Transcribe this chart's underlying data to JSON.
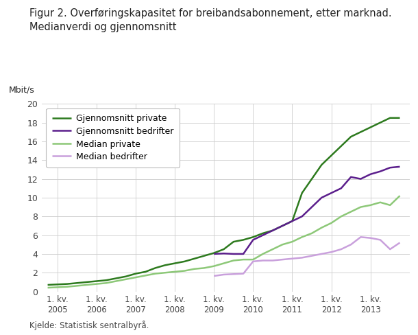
{
  "title_line1": "Figur 2. Overføringskapasitet for breibandsabonnement, etter marknad.",
  "title_line2": "Medianverdi og gjennomsnitt",
  "ylabel": "Mbit/s",
  "source": "Kjelde: Statistisk sentralbyrå.",
  "ylim": [
    0,
    20
  ],
  "xlim": [
    2004.6,
    2014.0
  ],
  "background_color": "#ffffff",
  "grid_color": "#cccccc",
  "series": [
    {
      "key": "gjennomsnitt_private",
      "label": "Gjennomsnitt private",
      "color": "#2d7a1e",
      "linewidth": 1.8,
      "x": [
        2004.75,
        2005.0,
        2005.25,
        2005.5,
        2005.75,
        2006.0,
        2006.25,
        2006.5,
        2006.75,
        2007.0,
        2007.25,
        2007.5,
        2007.75,
        2008.0,
        2008.25,
        2008.5,
        2008.75,
        2009.0,
        2009.25,
        2009.5,
        2009.75,
        2010.0,
        2010.25,
        2010.5,
        2010.75,
        2011.0,
        2011.25,
        2011.5,
        2011.75,
        2012.0,
        2012.25,
        2012.5,
        2012.75,
        2013.0,
        2013.25,
        2013.5,
        2013.75
      ],
      "y": [
        0.7,
        0.75,
        0.8,
        0.9,
        1.0,
        1.1,
        1.2,
        1.4,
        1.6,
        1.9,
        2.1,
        2.5,
        2.8,
        3.0,
        3.2,
        3.5,
        3.8,
        4.1,
        4.5,
        5.3,
        5.5,
        5.8,
        6.2,
        6.5,
        7.0,
        7.5,
        10.5,
        12.0,
        13.5,
        14.5,
        15.5,
        16.5,
        17.0,
        17.5,
        18.0,
        18.5,
        18.5
      ]
    },
    {
      "key": "gjennomsnitt_bedrifter",
      "label": "Gjennomsnitt bedrifter",
      "color": "#5b1e8c",
      "linewidth": 1.8,
      "x": [
        2009.0,
        2009.25,
        2009.5,
        2009.75,
        2010.0,
        2010.25,
        2010.5,
        2010.75,
        2011.0,
        2011.25,
        2011.5,
        2011.75,
        2012.0,
        2012.25,
        2012.5,
        2012.75,
        2013.0,
        2013.25,
        2013.5,
        2013.75
      ],
      "y": [
        4.0,
        4.05,
        4.0,
        4.0,
        5.5,
        6.0,
        6.5,
        7.0,
        7.5,
        8.0,
        9.0,
        10.0,
        10.5,
        11.0,
        12.2,
        12.0,
        12.5,
        12.8,
        13.2,
        13.3
      ]
    },
    {
      "key": "median_private",
      "label": "Median private",
      "color": "#8dc878",
      "linewidth": 1.8,
      "x": [
        2004.75,
        2005.0,
        2005.25,
        2005.5,
        2005.75,
        2006.0,
        2006.25,
        2006.5,
        2006.75,
        2007.0,
        2007.25,
        2007.5,
        2007.75,
        2008.0,
        2008.25,
        2008.5,
        2008.75,
        2009.0,
        2009.25,
        2009.5,
        2009.75,
        2010.0,
        2010.25,
        2010.5,
        2010.75,
        2011.0,
        2011.25,
        2011.5,
        2011.75,
        2012.0,
        2012.25,
        2012.5,
        2012.75,
        2013.0,
        2013.25,
        2013.5,
        2013.75
      ],
      "y": [
        0.4,
        0.45,
        0.5,
        0.6,
        0.7,
        0.8,
        0.9,
        1.1,
        1.3,
        1.5,
        1.7,
        1.9,
        2.0,
        2.1,
        2.2,
        2.4,
        2.5,
        2.7,
        3.0,
        3.3,
        3.4,
        3.4,
        4.0,
        4.5,
        5.0,
        5.3,
        5.8,
        6.2,
        6.8,
        7.3,
        8.0,
        8.5,
        9.0,
        9.2,
        9.5,
        9.2,
        10.2
      ]
    },
    {
      "key": "median_bedrifter",
      "label": "Median bedrifter",
      "color": "#c9a0dc",
      "linewidth": 1.8,
      "x": [
        2009.0,
        2009.25,
        2009.5,
        2009.75,
        2010.0,
        2010.25,
        2010.5,
        2010.75,
        2011.0,
        2011.25,
        2011.5,
        2011.75,
        2012.0,
        2012.25,
        2012.5,
        2012.75,
        2013.0,
        2013.25,
        2013.5,
        2013.75
      ],
      "y": [
        1.65,
        1.8,
        1.85,
        1.9,
        3.2,
        3.3,
        3.3,
        3.4,
        3.5,
        3.6,
        3.8,
        4.0,
        4.2,
        4.5,
        5.0,
        5.8,
        5.7,
        5.5,
        4.5,
        5.2
      ]
    }
  ],
  "xticks_positions": [
    2005.0,
    2006.0,
    2007.0,
    2008.0,
    2009.0,
    2010.0,
    2011.0,
    2012.0,
    2013.0
  ],
  "xticks_labels": [
    "1. kv.\n2005",
    "1. kv.\n2006",
    "1. kv.\n2007",
    "1. kv.\n2008",
    "1. kv.\n2009",
    "1. kv.\n2010",
    "1. kv.\n2011",
    "1. kv.\n2012",
    "1. kv.\n2013"
  ],
  "yticks": [
    0,
    2,
    4,
    6,
    8,
    10,
    12,
    14,
    16,
    18,
    20
  ]
}
